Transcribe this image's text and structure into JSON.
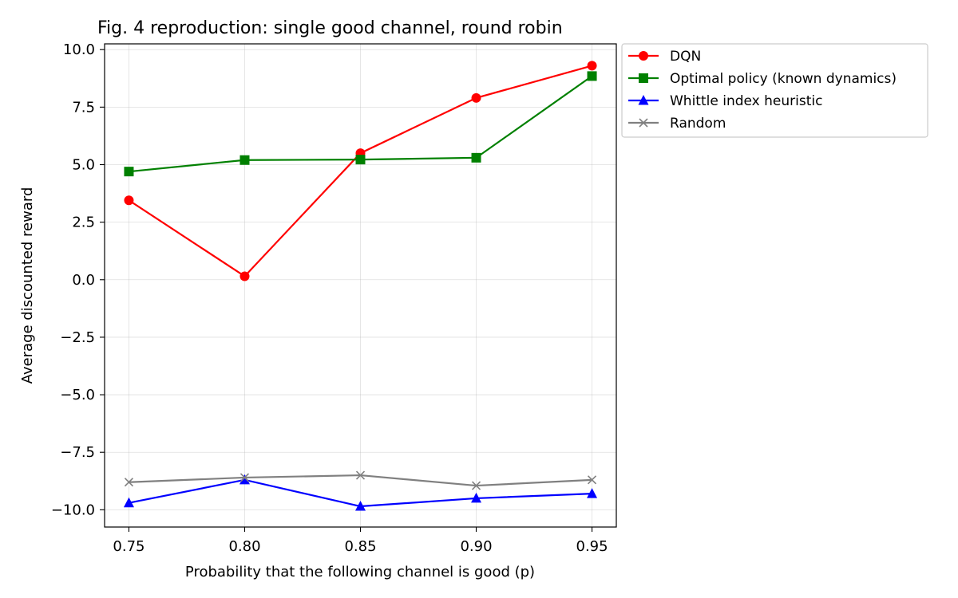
{
  "chart_data": {
    "type": "line",
    "title": "Fig. 4 reproduction: single good channel, round robin",
    "xlabel": "Probability that the following channel is good (p)",
    "ylabel": "Average discounted reward",
    "x": [
      0.75,
      0.8,
      0.85,
      0.9,
      0.95
    ],
    "x_tick_labels": [
      "0.75",
      "0.80",
      "0.85",
      "0.90",
      "0.95"
    ],
    "xlim": [
      0.7395,
      0.9605
    ],
    "ylim": [
      -10.75,
      10.25
    ],
    "y_ticks": [
      10.0,
      7.5,
      5.0,
      2.5,
      0.0,
      -2.5,
      -5.0,
      -7.5,
      -10.0
    ],
    "y_tick_labels": [
      "10.0",
      "7.5",
      "5.0",
      "2.5",
      "0.0",
      "−2.5",
      "−5.0",
      "−7.5",
      "−10.0"
    ],
    "grid": true,
    "legend_position": "outside-top-right",
    "series": [
      {
        "name": "DQN",
        "color": "#ff0000",
        "marker": "circle",
        "values": [
          3.45,
          0.15,
          5.5,
          7.9,
          9.3
        ]
      },
      {
        "name": "Optimal policy (known dynamics)",
        "color": "#008000",
        "marker": "square",
        "values": [
          4.7,
          5.2,
          5.22,
          5.3,
          8.85
        ]
      },
      {
        "name": "Whittle index heuristic",
        "color": "#0000ff",
        "marker": "triangle",
        "values": [
          -9.7,
          -8.7,
          -9.85,
          -9.5,
          -9.3
        ]
      },
      {
        "name": "Random",
        "color": "#808080",
        "marker": "x",
        "values": [
          -8.8,
          -8.6,
          -8.5,
          -8.95,
          -8.7
        ]
      }
    ]
  }
}
